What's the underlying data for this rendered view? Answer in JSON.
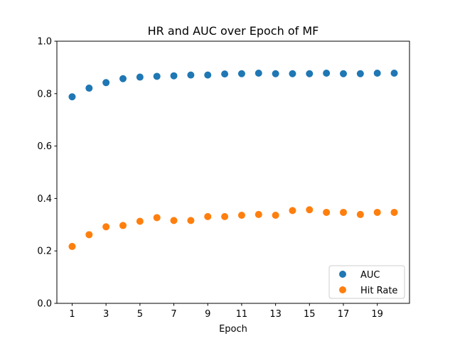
{
  "chart_data": {
    "type": "scatter",
    "title": "HR and AUC over Epoch of MF",
    "xlabel": "Epoch",
    "ylabel": "",
    "x": [
      1,
      2,
      3,
      4,
      5,
      6,
      7,
      8,
      9,
      10,
      11,
      12,
      13,
      14,
      15,
      16,
      17,
      18,
      19,
      20
    ],
    "xticks": [
      1,
      3,
      5,
      7,
      9,
      11,
      13,
      15,
      17,
      19
    ],
    "xlim": [
      0.1,
      20.9
    ],
    "ylim": [
      0.0,
      1.0
    ],
    "yticks": [
      "0.0",
      "0.2",
      "0.4",
      "0.6",
      "0.8",
      "1.0"
    ],
    "grid": false,
    "legend_position": "lower-right",
    "series": [
      {
        "name": "AUC",
        "color": "#1f77b4",
        "values": [
          0.788,
          0.821,
          0.842,
          0.857,
          0.863,
          0.866,
          0.868,
          0.871,
          0.871,
          0.875,
          0.876,
          0.878,
          0.876,
          0.876,
          0.876,
          0.878,
          0.876,
          0.876,
          0.878,
          0.878
        ]
      },
      {
        "name": "Hit Rate",
        "color": "#ff7f0e",
        "values": [
          0.217,
          0.262,
          0.292,
          0.297,
          0.313,
          0.327,
          0.316,
          0.316,
          0.331,
          0.331,
          0.336,
          0.339,
          0.336,
          0.354,
          0.357,
          0.347,
          0.347,
          0.339,
          0.347,
          0.347
        ]
      }
    ]
  }
}
